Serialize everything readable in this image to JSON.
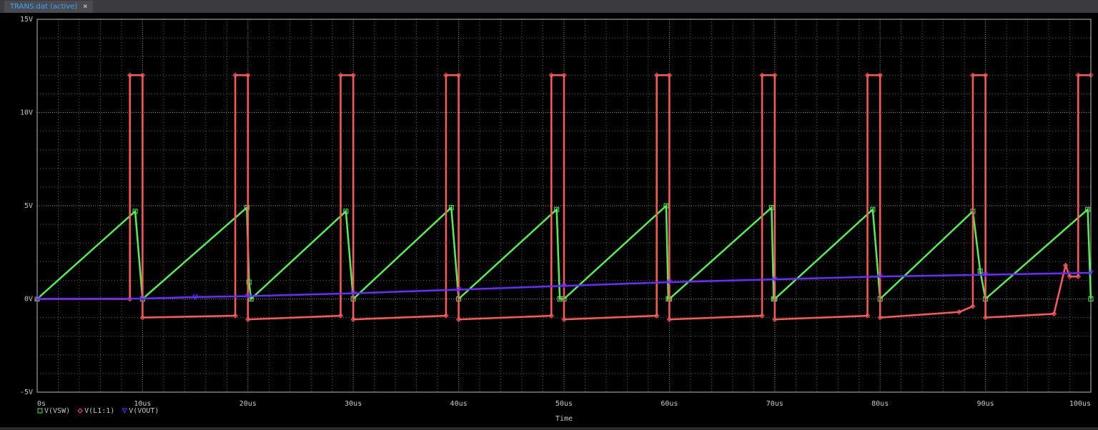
{
  "tab": {
    "title": "TRANS.dat (active)",
    "close": "×"
  },
  "chart_data": {
    "type": "line",
    "x_label": "Time",
    "xlim": [
      0,
      100
    ],
    "xticks": [
      {
        "value": 0,
        "label": "0s"
      },
      {
        "value": 10,
        "label": "10us"
      },
      {
        "value": 20,
        "label": "20us"
      },
      {
        "value": 30,
        "label": "30us"
      },
      {
        "value": 40,
        "label": "40us"
      },
      {
        "value": 50,
        "label": "50us"
      },
      {
        "value": 60,
        "label": "60us"
      },
      {
        "value": 70,
        "label": "70us"
      },
      {
        "value": 80,
        "label": "80us"
      },
      {
        "value": 90,
        "label": "90us"
      },
      {
        "value": 100,
        "label": "100us"
      }
    ],
    "ylim": [
      -5,
      15
    ],
    "yticks": [
      {
        "value": -5,
        "label": "-5V"
      },
      {
        "value": 0,
        "label": "0V"
      },
      {
        "value": 5,
        "label": "5V"
      },
      {
        "value": 10,
        "label": "10V"
      },
      {
        "value": 15,
        "label": "15V"
      }
    ],
    "grid": true,
    "legend": "bottom-left",
    "series": [
      {
        "name": "V(VSW)",
        "color": "#55ee55",
        "marker": "square",
        "x": [
          0,
          9.3,
          10.0,
          19.9,
          20.1,
          20.3,
          29.3,
          30.0,
          39.3,
          40.0,
          49.3,
          49.6,
          50.0,
          59.7,
          59.9,
          60.0,
          69.7,
          69.9,
          70.0,
          79.3,
          80.0,
          88.8,
          89.5,
          90.0,
          99.7,
          100
        ],
        "values": [
          0,
          4.7,
          0,
          4.9,
          0.9,
          0,
          4.7,
          0,
          4.9,
          0,
          4.8,
          0,
          0,
          5.0,
          0,
          0,
          4.9,
          0,
          0,
          4.8,
          0,
          4.7,
          1.5,
          0,
          4.8,
          0
        ]
      },
      {
        "name": "V(L1:1)",
        "color": "#ff5a5a",
        "marker": "diamond",
        "x": [
          0,
          8.8,
          8.8,
          10.0,
          10.0,
          18.8,
          18.8,
          20.0,
          20.0,
          28.8,
          28.8,
          30.0,
          30.0,
          38.8,
          38.8,
          40.0,
          40.0,
          48.8,
          48.8,
          50.0,
          50.0,
          58.8,
          58.8,
          60.0,
          60.0,
          68.8,
          68.8,
          70.0,
          70.0,
          78.8,
          78.8,
          80.0,
          80.0,
          87.5,
          88.8,
          88.8,
          90.0,
          90.0,
          96.5,
          97.6,
          98.0,
          98.8,
          98.8,
          100
        ],
        "values": [
          0,
          0,
          12,
          12,
          -1.0,
          -0.9,
          12,
          12,
          -1.1,
          -0.9,
          12,
          12,
          -1.1,
          -0.9,
          12,
          12,
          -1.1,
          -0.9,
          12,
          12,
          -1.1,
          -0.9,
          12,
          12,
          -1.1,
          -0.9,
          12,
          12,
          -1.1,
          -0.9,
          12,
          12,
          -1.0,
          -0.7,
          -0.4,
          12,
          12,
          -1.0,
          -0.8,
          1.8,
          1.2,
          1.2,
          12,
          12
        ]
      },
      {
        "name": "V(VOUT)",
        "color": "#6a2cff",
        "marker": "triangle",
        "x": [
          0,
          10,
          15,
          20,
          30,
          40,
          50,
          60,
          70,
          80,
          90,
          100
        ],
        "values": [
          0,
          0.02,
          0.1,
          0.15,
          0.3,
          0.5,
          0.7,
          0.9,
          1.05,
          1.2,
          1.3,
          1.4
        ]
      }
    ]
  }
}
